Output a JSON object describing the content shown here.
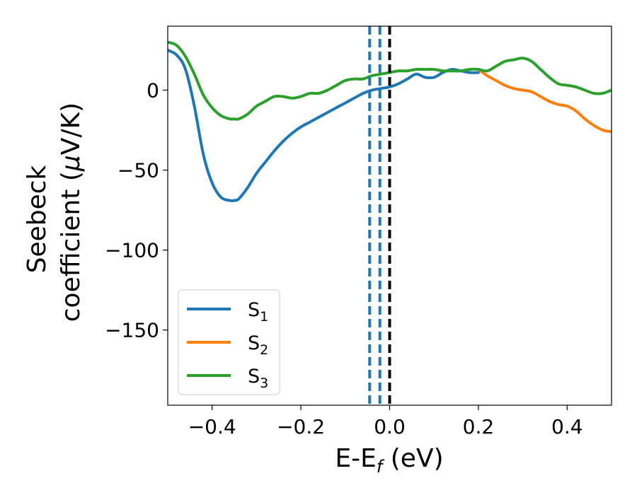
{
  "chart_data": {
    "type": "line",
    "title": "",
    "xlabel": "E-E",
    "xlabel_sub": "f",
    "xlabel_unit": " (eV)",
    "ylabel_line1": "Seebeck",
    "ylabel_line2_pre": "coefficient  (",
    "ylabel_mu": "μ",
    "ylabel_line2_post": "V/K)",
    "xlim": [
      -0.5,
      0.5
    ],
    "ylim": [
      -197,
      40
    ],
    "xticks": [
      -0.4,
      -0.2,
      0.0,
      0.2,
      0.4
    ],
    "xtick_labels": [
      "−0.4",
      "−0.2",
      "0.0",
      "0.2",
      "0.4"
    ],
    "yticks": [
      0,
      -50,
      -100,
      -150
    ],
    "ytick_labels": [
      "0",
      "−50",
      "−100",
      "−150"
    ],
    "grid": false,
    "legend_position": "lower-left",
    "vlines": [
      {
        "x": -0.045,
        "color": "#1f77b4",
        "style": "dashed"
      },
      {
        "x": -0.022,
        "color": "#1f77b4",
        "style": "dashed"
      },
      {
        "x": 0.0,
        "color": "#000000",
        "style": "dashed"
      }
    ],
    "series": [
      {
        "name": "S",
        "sub": "1",
        "color": "#1f77b4",
        "x": [
          -0.5,
          -0.48,
          -0.46,
          -0.44,
          -0.42,
          -0.4,
          -0.38,
          -0.36,
          -0.35,
          -0.34,
          -0.32,
          -0.3,
          -0.28,
          -0.26,
          -0.24,
          -0.22,
          -0.2,
          -0.18,
          -0.16,
          -0.14,
          -0.12,
          -0.1,
          -0.08,
          -0.06,
          -0.04,
          -0.02,
          0.0,
          0.02,
          0.04,
          0.06,
          0.08,
          0.1,
          0.12,
          0.14,
          0.16,
          0.18,
          0.2
        ],
        "y": [
          25,
          22,
          13,
          -10,
          -40,
          -58,
          -67,
          -69,
          -69,
          -68,
          -61,
          -52,
          -45,
          -38,
          -32,
          -27,
          -23,
          -20,
          -17,
          -14,
          -11,
          -8,
          -5,
          -2,
          0,
          1,
          2,
          4,
          7,
          10,
          8,
          8,
          11,
          13,
          12,
          11,
          11
        ]
      },
      {
        "name": "S",
        "sub": "2",
        "color": "#ff7f0e",
        "x": [
          0.2,
          0.22,
          0.24,
          0.26,
          0.28,
          0.3,
          0.32,
          0.34,
          0.36,
          0.38,
          0.4,
          0.42,
          0.44,
          0.46,
          0.48,
          0.5
        ],
        "y": [
          13,
          9,
          6,
          3,
          1,
          0,
          -1,
          -4,
          -7,
          -9,
          -10,
          -13,
          -18,
          -22,
          -25,
          -26
        ]
      },
      {
        "name": "S",
        "sub": "3",
        "color": "#2ca02c",
        "x": [
          -0.5,
          -0.48,
          -0.46,
          -0.44,
          -0.42,
          -0.4,
          -0.38,
          -0.36,
          -0.35,
          -0.34,
          -0.32,
          -0.3,
          -0.28,
          -0.26,
          -0.24,
          -0.22,
          -0.2,
          -0.18,
          -0.16,
          -0.14,
          -0.12,
          -0.1,
          -0.08,
          -0.06,
          -0.04,
          -0.02,
          0.0,
          0.02,
          0.04,
          0.06,
          0.08,
          0.1,
          0.12,
          0.14,
          0.16,
          0.18,
          0.2,
          0.22,
          0.24,
          0.26,
          0.28,
          0.3,
          0.32,
          0.34,
          0.36,
          0.38,
          0.4,
          0.42,
          0.44,
          0.46,
          0.48,
          0.5
        ],
        "y": [
          30,
          28,
          21,
          10,
          -3,
          -11,
          -16,
          -18,
          -18,
          -18,
          -15,
          -10,
          -7,
          -4,
          -4,
          -5,
          -4,
          -2,
          -2,
          0,
          3,
          6,
          7,
          7,
          9,
          10,
          11,
          12,
          12,
          13,
          13,
          13,
          12,
          12,
          12,
          13,
          13,
          12,
          15,
          18,
          19,
          20,
          18,
          13,
          8,
          4,
          3,
          2,
          0,
          -2,
          -2,
          0
        ]
      }
    ]
  }
}
